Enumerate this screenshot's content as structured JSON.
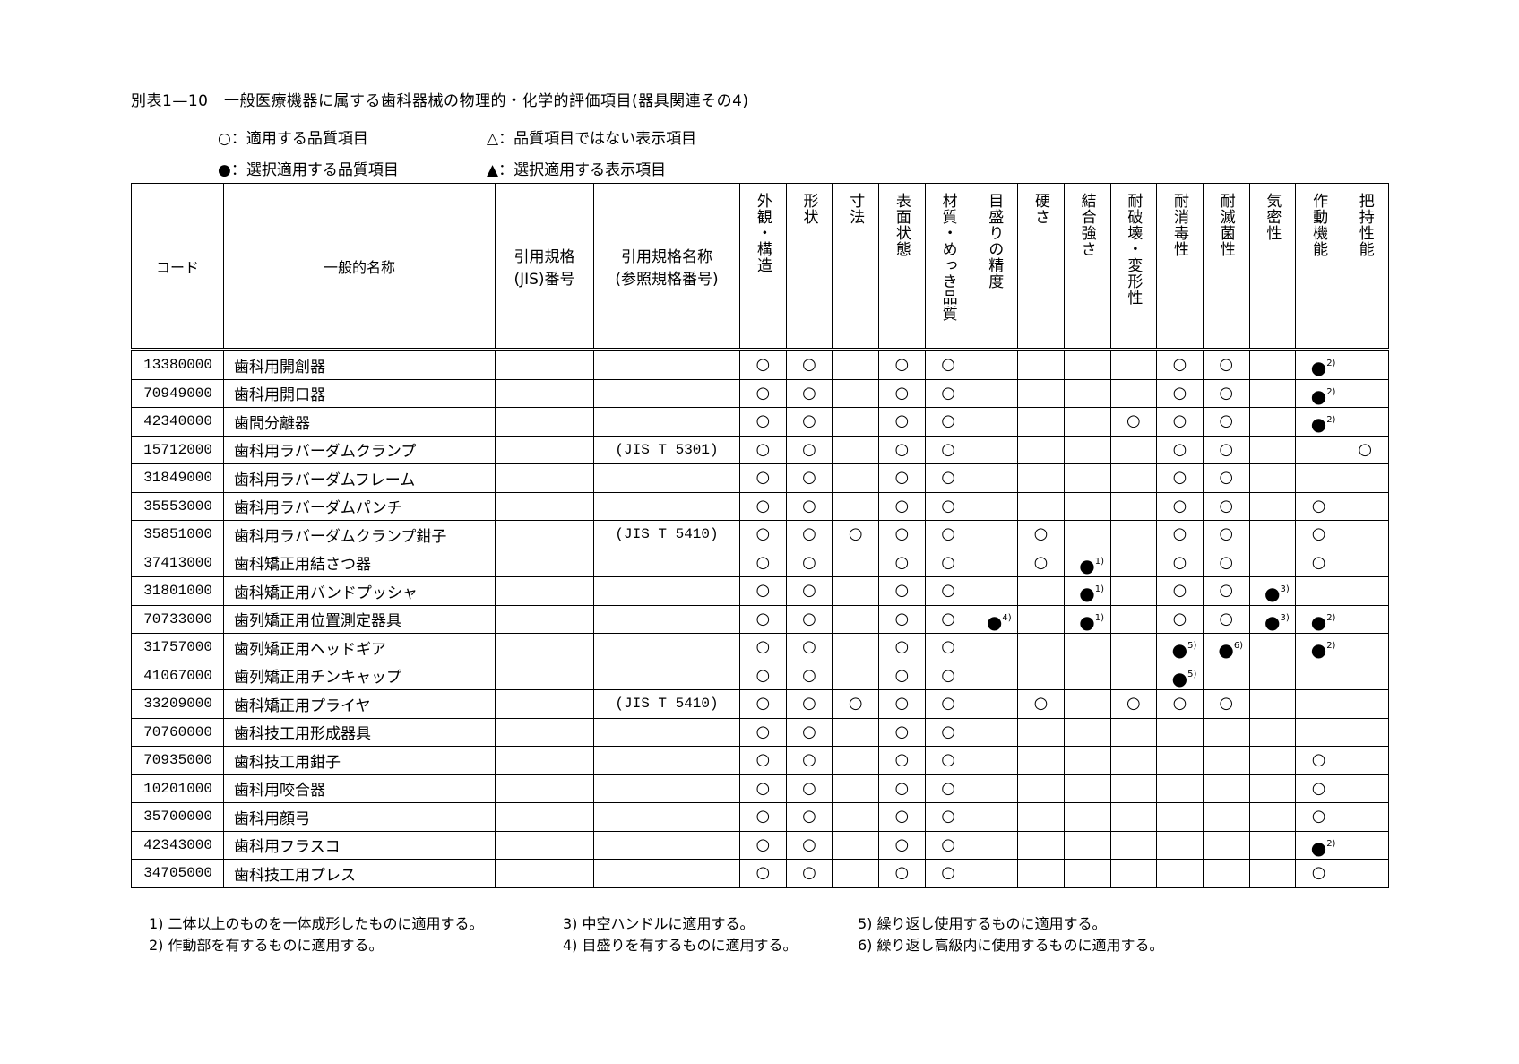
{
  "title": "別表1—10　一般医療機器に属する歯科器械の物理的・化学的評価項目(器具関連その4)",
  "legend": [
    "○：適用する品質項目",
    "△：品質項目ではない表示項目",
    "●：選択適用する品質項目",
    "▲：選択適用する表示項目"
  ],
  "table": {
    "headers": {
      "code": "コード",
      "name": "一般的名称",
      "jis": "引用規格\n(JIS)番号",
      "ref": "引用規格名称\n(参照規格番号)",
      "items": [
        "外観・構造",
        "形状",
        "寸法",
        "表面状態",
        "材質・めっき品質",
        "目盛りの精度",
        "硬さ",
        "結合強さ",
        "耐破壊・変形性",
        "耐消毒性",
        "耐滅菌性",
        "気密性",
        "作動機能",
        "把持性能"
      ]
    },
    "rows": [
      {
        "code": "13380000",
        "name": "歯科用開創器",
        "jis": "",
        "ref": "",
        "marks": [
          "○",
          "○",
          "",
          "○",
          "○",
          "",
          "",
          "",
          "",
          "○",
          "○",
          "",
          "●2)",
          ""
        ]
      },
      {
        "code": "70949000",
        "name": "歯科用開口器",
        "jis": "",
        "ref": "",
        "marks": [
          "○",
          "○",
          "",
          "○",
          "○",
          "",
          "",
          "",
          "",
          "○",
          "○",
          "",
          "●2)",
          ""
        ]
      },
      {
        "code": "42340000",
        "name": "歯間分離器",
        "jis": "",
        "ref": "",
        "marks": [
          "○",
          "○",
          "",
          "○",
          "○",
          "",
          "",
          "",
          "○",
          "○",
          "○",
          "",
          "●2)",
          ""
        ]
      },
      {
        "code": "15712000",
        "name": "歯科用ラバーダムクランプ",
        "jis": "",
        "ref": "(JIS T 5301)",
        "marks": [
          "○",
          "○",
          "",
          "○",
          "○",
          "",
          "",
          "",
          "",
          "○",
          "○",
          "",
          "",
          "○"
        ]
      },
      {
        "code": "31849000",
        "name": "歯科用ラバーダムフレーム",
        "jis": "",
        "ref": "",
        "marks": [
          "○",
          "○",
          "",
          "○",
          "○",
          "",
          "",
          "",
          "",
          "○",
          "○",
          "",
          "",
          ""
        ]
      },
      {
        "code": "35553000",
        "name": "歯科用ラバーダムパンチ",
        "jis": "",
        "ref": "",
        "marks": [
          "○",
          "○",
          "",
          "○",
          "○",
          "",
          "",
          "",
          "",
          "○",
          "○",
          "",
          "○",
          ""
        ]
      },
      {
        "code": "35851000",
        "name": "歯科用ラバーダムクランプ鉗子",
        "jis": "",
        "ref": "(JIS T 5410)",
        "marks": [
          "○",
          "○",
          "○",
          "○",
          "○",
          "",
          "○",
          "",
          "",
          "○",
          "○",
          "",
          "○",
          ""
        ]
      },
      {
        "code": "37413000",
        "name": "歯科矯正用結さつ器",
        "jis": "",
        "ref": "",
        "marks": [
          "○",
          "○",
          "",
          "○",
          "○",
          "",
          "○",
          "●1)",
          "",
          "○",
          "○",
          "",
          "○",
          ""
        ]
      },
      {
        "code": "31801000",
        "name": "歯科矯正用バンドプッシャ",
        "jis": "",
        "ref": "",
        "marks": [
          "○",
          "○",
          "",
          "○",
          "○",
          "",
          "",
          "●1)",
          "",
          "○",
          "○",
          "●3)",
          "",
          ""
        ]
      },
      {
        "code": "70733000",
        "name": "歯列矯正用位置測定器具",
        "jis": "",
        "ref": "",
        "marks": [
          "○",
          "○",
          "",
          "○",
          "○",
          "●4)",
          "",
          "●1)",
          "",
          "○",
          "○",
          "●3)",
          "●2)",
          ""
        ]
      },
      {
        "code": "31757000",
        "name": "歯列矯正用ヘッドギア",
        "jis": "",
        "ref": "",
        "marks": [
          "○",
          "○",
          "",
          "○",
          "○",
          "",
          "",
          "",
          "",
          "●5)",
          "●6)",
          "",
          "●2)",
          ""
        ]
      },
      {
        "code": "41067000",
        "name": "歯列矯正用チンキャップ",
        "jis": "",
        "ref": "",
        "marks": [
          "○",
          "○",
          "",
          "○",
          "○",
          "",
          "",
          "",
          "",
          "●5)",
          "",
          "",
          "",
          ""
        ]
      },
      {
        "code": "33209000",
        "name": "歯科矯正用プライヤ",
        "jis": "",
        "ref": "(JIS T 5410)",
        "marks": [
          "○",
          "○",
          "○",
          "○",
          "○",
          "",
          "○",
          "",
          "○",
          "○",
          "○",
          "",
          "",
          ""
        ]
      },
      {
        "code": "70760000",
        "name": "歯科技工用形成器具",
        "jis": "",
        "ref": "",
        "marks": [
          "○",
          "○",
          "",
          "○",
          "○",
          "",
          "",
          "",
          "",
          "",
          "",
          "",
          "",
          ""
        ]
      },
      {
        "code": "70935000",
        "name": "歯科技工用鉗子",
        "jis": "",
        "ref": "",
        "marks": [
          "○",
          "○",
          "",
          "○",
          "○",
          "",
          "",
          "",
          "",
          "",
          "",
          "",
          "○",
          ""
        ]
      },
      {
        "code": "10201000",
        "name": "歯科用咬合器",
        "jis": "",
        "ref": "",
        "marks": [
          "○",
          "○",
          "",
          "○",
          "○",
          "",
          "",
          "",
          "",
          "",
          "",
          "",
          "○",
          ""
        ]
      },
      {
        "code": "35700000",
        "name": "歯科用顔弓",
        "jis": "",
        "ref": "",
        "marks": [
          "○",
          "○",
          "",
          "○",
          "○",
          "",
          "",
          "",
          "",
          "",
          "",
          "",
          "○",
          ""
        ]
      },
      {
        "code": "42343000",
        "name": "歯科用フラスコ",
        "jis": "",
        "ref": "",
        "marks": [
          "○",
          "○",
          "",
          "○",
          "○",
          "",
          "",
          "",
          "",
          "",
          "",
          "",
          "●2)",
          ""
        ]
      },
      {
        "code": "34705000",
        "name": "歯科技工用プレス",
        "jis": "",
        "ref": "",
        "marks": [
          "○",
          "○",
          "",
          "○",
          "○",
          "",
          "",
          "",
          "",
          "",
          "",
          "",
          "○",
          ""
        ]
      }
    ]
  },
  "footnotes": [
    "1) 二体以上のものを一体成形したものに適用する。",
    "2) 作動部を有するものに適用する。",
    "3) 中空ハンドルに適用する。",
    "4) 目盛りを有するものに適用する。",
    "5) 繰り返し使用するものに適用する。",
    "6) 繰り返し高級内に使用するものに適用する。"
  ]
}
